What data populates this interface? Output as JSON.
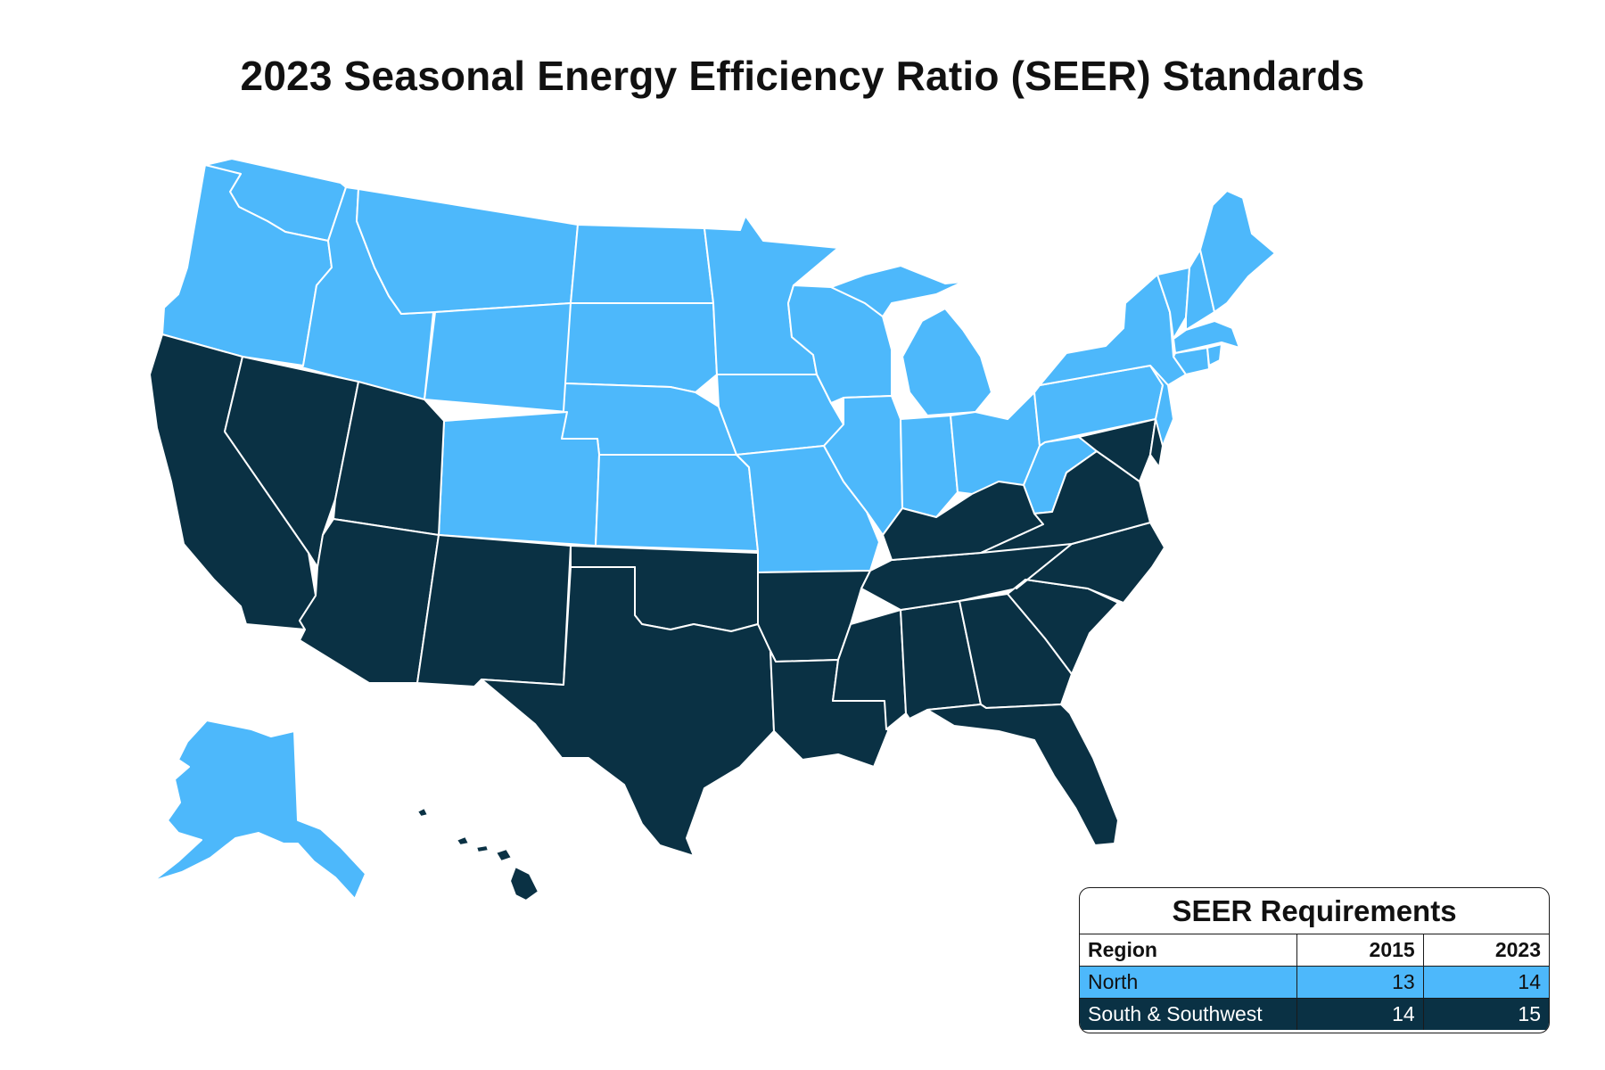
{
  "title": "2023 Seasonal Energy Efficiency Ratio (SEER) Standards",
  "colors": {
    "north": "#4db8fb",
    "south": "#0a3144",
    "border": "#ffffff"
  },
  "legend": {
    "title": "SEER Requirements",
    "headers": [
      "Region",
      "2015",
      "2023"
    ],
    "rows": [
      {
        "region": "North",
        "y2015": "13",
        "y2023": "14",
        "color": "#4db8fb",
        "text_color": "#111111"
      },
      {
        "region": "South & Southwest",
        "y2015": "14",
        "y2023": "15",
        "color": "#0a3144",
        "text_color": "#ffffff"
      }
    ]
  },
  "regions": {
    "north": [
      "Washington",
      "Oregon",
      "Idaho",
      "Montana",
      "Wyoming",
      "North Dakota",
      "South Dakota",
      "Nebraska",
      "Colorado",
      "Kansas",
      "Minnesota",
      "Iowa",
      "Missouri",
      "Wisconsin",
      "Illinois",
      "Michigan",
      "Indiana",
      "Ohio",
      "Pennsylvania",
      "New York",
      "New Jersey",
      "West Virginia",
      "Vermont",
      "New Hampshire",
      "Maine",
      "Massachusetts",
      "Connecticut",
      "Rhode Island",
      "Alaska"
    ],
    "south": [
      "California",
      "Nevada",
      "Utah",
      "Arizona",
      "New Mexico",
      "Texas",
      "Oklahoma",
      "Arkansas",
      "Louisiana",
      "Mississippi",
      "Alabama",
      "Tennessee",
      "Kentucky",
      "Georgia",
      "Florida",
      "South Carolina",
      "North Carolina",
      "Virginia",
      "Maryland",
      "Delaware",
      "Hawaii"
    ]
  }
}
